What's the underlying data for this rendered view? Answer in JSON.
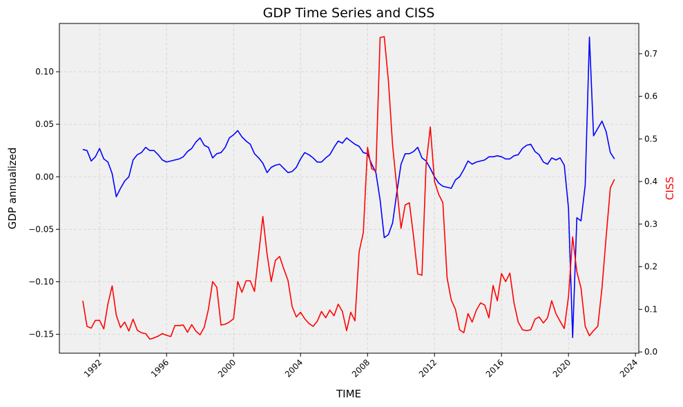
{
  "chart_data": {
    "type": "line",
    "title": "GDP Time Series and CISS",
    "xlabel": "TIME",
    "ylabel_left": "GDP annualized",
    "ylabel_right": "CISS",
    "xlim": [
      1989.6,
      2024.2
    ],
    "ylim_left": [
      -0.168,
      0.146
    ],
    "ylim_right": [
      -0.003,
      0.771
    ],
    "x_ticks": [
      1992,
      1996,
      2000,
      2004,
      2008,
      2012,
      2016,
      2020,
      2024
    ],
    "x_tick_labels": [
      "1992",
      "1996",
      "2000",
      "2004",
      "2008",
      "2012",
      "2016",
      "2020",
      "2024"
    ],
    "y_left_ticks": [
      -0.15,
      -0.1,
      -0.05,
      0.0,
      0.05,
      0.1
    ],
    "y_left_tick_labels": [
      "−0.15",
      "−0.10",
      "−0.05",
      "0.00",
      "0.05",
      "0.10"
    ],
    "y_right_ticks": [
      0.0,
      0.1,
      0.2,
      0.3,
      0.4,
      0.5,
      0.6,
      0.7
    ],
    "y_right_tick_labels": [
      "0.0",
      "0.1",
      "0.2",
      "0.3",
      "0.4",
      "0.5",
      "0.6",
      "0.7"
    ],
    "grid": true,
    "plot_background": "#f0f0f0",
    "right_axis_label_color": "#ff0000",
    "series": [
      {
        "axis": "left",
        "color": "#0000ff",
        "points": [
          [
            1991.0,
            0.026
          ],
          [
            1991.25,
            0.025
          ],
          [
            1991.5,
            0.015
          ],
          [
            1991.75,
            0.019
          ],
          [
            1992.0,
            0.027
          ],
          [
            1992.25,
            0.017
          ],
          [
            1992.5,
            0.014
          ],
          [
            1992.75,
            0.003
          ],
          [
            1993.0,
            -0.019
          ],
          [
            1993.25,
            -0.011
          ],
          [
            1993.5,
            -0.004
          ],
          [
            1993.75,
            0.0
          ],
          [
            1994.0,
            0.016
          ],
          [
            1994.25,
            0.021
          ],
          [
            1994.5,
            0.023
          ],
          [
            1994.75,
            0.028
          ],
          [
            1995.0,
            0.025
          ],
          [
            1995.25,
            0.025
          ],
          [
            1995.5,
            0.021
          ],
          [
            1995.75,
            0.016
          ],
          [
            1996.0,
            0.014
          ],
          [
            1996.25,
            0.015
          ],
          [
            1996.5,
            0.016
          ],
          [
            1996.75,
            0.017
          ],
          [
            1997.0,
            0.019
          ],
          [
            1997.25,
            0.024
          ],
          [
            1997.5,
            0.027
          ],
          [
            1997.75,
            0.033
          ],
          [
            1998.0,
            0.037
          ],
          [
            1998.25,
            0.03
          ],
          [
            1998.5,
            0.028
          ],
          [
            1998.75,
            0.018
          ],
          [
            1999.0,
            0.022
          ],
          [
            1999.25,
            0.023
          ],
          [
            1999.5,
            0.028
          ],
          [
            1999.75,
            0.037
          ],
          [
            2000.0,
            0.04
          ],
          [
            2000.25,
            0.044
          ],
          [
            2000.5,
            0.038
          ],
          [
            2000.75,
            0.034
          ],
          [
            2001.0,
            0.031
          ],
          [
            2001.25,
            0.022
          ],
          [
            2001.5,
            0.018
          ],
          [
            2001.75,
            0.013
          ],
          [
            2002.0,
            0.004
          ],
          [
            2002.25,
            0.009
          ],
          [
            2002.5,
            0.011
          ],
          [
            2002.75,
            0.012
          ],
          [
            2003.0,
            0.008
          ],
          [
            2003.25,
            0.004
          ],
          [
            2003.5,
            0.005
          ],
          [
            2003.75,
            0.009
          ],
          [
            2004.0,
            0.017
          ],
          [
            2004.25,
            0.023
          ],
          [
            2004.5,
            0.021
          ],
          [
            2004.75,
            0.018
          ],
          [
            2005.0,
            0.014
          ],
          [
            2005.25,
            0.014
          ],
          [
            2005.5,
            0.018
          ],
          [
            2005.75,
            0.021
          ],
          [
            2006.0,
            0.028
          ],
          [
            2006.25,
            0.034
          ],
          [
            2006.5,
            0.032
          ],
          [
            2006.75,
            0.037
          ],
          [
            2007.0,
            0.034
          ],
          [
            2007.25,
            0.031
          ],
          [
            2007.5,
            0.029
          ],
          [
            2007.75,
            0.023
          ],
          [
            2008.0,
            0.022
          ],
          [
            2008.25,
            0.012
          ],
          [
            2008.5,
            0.004
          ],
          [
            2008.75,
            -0.022
          ],
          [
            2009.0,
            -0.058
          ],
          [
            2009.25,
            -0.055
          ],
          [
            2009.5,
            -0.044
          ],
          [
            2009.75,
            -0.015
          ],
          [
            2010.0,
            0.012
          ],
          [
            2010.25,
            0.022
          ],
          [
            2010.5,
            0.022
          ],
          [
            2010.75,
            0.024
          ],
          [
            2011.0,
            0.028
          ],
          [
            2011.25,
            0.018
          ],
          [
            2011.5,
            0.015
          ],
          [
            2011.75,
            0.008
          ],
          [
            2012.0,
            0.0
          ],
          [
            2012.25,
            -0.006
          ],
          [
            2012.5,
            -0.009
          ],
          [
            2012.75,
            -0.01
          ],
          [
            2013.0,
            -0.011
          ],
          [
            2013.25,
            -0.003
          ],
          [
            2013.5,
            0.0
          ],
          [
            2013.75,
            0.007
          ],
          [
            2014.0,
            0.015
          ],
          [
            2014.25,
            0.012
          ],
          [
            2014.5,
            0.014
          ],
          [
            2014.75,
            0.015
          ],
          [
            2015.0,
            0.016
          ],
          [
            2015.25,
            0.019
          ],
          [
            2015.5,
            0.019
          ],
          [
            2015.75,
            0.02
          ],
          [
            2016.0,
            0.019
          ],
          [
            2016.25,
            0.017
          ],
          [
            2016.5,
            0.017
          ],
          [
            2016.75,
            0.02
          ],
          [
            2017.0,
            0.021
          ],
          [
            2017.25,
            0.027
          ],
          [
            2017.5,
            0.03
          ],
          [
            2017.75,
            0.031
          ],
          [
            2018.0,
            0.024
          ],
          [
            2018.25,
            0.021
          ],
          [
            2018.5,
            0.014
          ],
          [
            2018.75,
            0.012
          ],
          [
            2019.0,
            0.018
          ],
          [
            2019.25,
            0.016
          ],
          [
            2019.5,
            0.018
          ],
          [
            2019.75,
            0.011
          ],
          [
            2020.0,
            -0.03
          ],
          [
            2020.25,
            -0.153
          ],
          [
            2020.5,
            -0.039
          ],
          [
            2020.75,
            -0.042
          ],
          [
            2021.0,
            -0.008
          ],
          [
            2021.25,
            0.133
          ],
          [
            2021.5,
            0.039
          ],
          [
            2021.75,
            0.046
          ],
          [
            2022.0,
            0.053
          ],
          [
            2022.25,
            0.043
          ],
          [
            2022.5,
            0.023
          ],
          [
            2022.75,
            0.017
          ]
        ]
      },
      {
        "axis": "right",
        "color": "#ff0000",
        "points": [
          [
            1991.0,
            0.12
          ],
          [
            1991.25,
            0.06
          ],
          [
            1991.5,
            0.056
          ],
          [
            1991.75,
            0.074
          ],
          [
            1992.0,
            0.074
          ],
          [
            1992.25,
            0.054
          ],
          [
            1992.5,
            0.113
          ],
          [
            1992.75,
            0.155
          ],
          [
            1993.0,
            0.086
          ],
          [
            1993.25,
            0.057
          ],
          [
            1993.5,
            0.07
          ],
          [
            1993.75,
            0.049
          ],
          [
            1994.0,
            0.077
          ],
          [
            1994.25,
            0.051
          ],
          [
            1994.5,
            0.045
          ],
          [
            1994.75,
            0.043
          ],
          [
            1995.0,
            0.03
          ],
          [
            1995.25,
            0.033
          ],
          [
            1995.5,
            0.037
          ],
          [
            1995.75,
            0.043
          ],
          [
            1996.0,
            0.039
          ],
          [
            1996.25,
            0.036
          ],
          [
            1996.5,
            0.062
          ],
          [
            1996.75,
            0.062
          ],
          [
            1997.0,
            0.063
          ],
          [
            1997.25,
            0.046
          ],
          [
            1997.5,
            0.064
          ],
          [
            1997.75,
            0.049
          ],
          [
            1998.0,
            0.04
          ],
          [
            1998.25,
            0.058
          ],
          [
            1998.5,
            0.1
          ],
          [
            1998.75,
            0.165
          ],
          [
            1999.0,
            0.152
          ],
          [
            1999.25,
            0.063
          ],
          [
            1999.5,
            0.065
          ],
          [
            1999.75,
            0.07
          ],
          [
            2000.0,
            0.078
          ],
          [
            2000.25,
            0.165
          ],
          [
            2000.5,
            0.14
          ],
          [
            2000.75,
            0.167
          ],
          [
            2001.0,
            0.167
          ],
          [
            2001.25,
            0.142
          ],
          [
            2001.5,
            0.23
          ],
          [
            2001.75,
            0.318
          ],
          [
            2002.0,
            0.23
          ],
          [
            2002.25,
            0.165
          ],
          [
            2002.5,
            0.215
          ],
          [
            2002.75,
            0.224
          ],
          [
            2003.0,
            0.195
          ],
          [
            2003.25,
            0.168
          ],
          [
            2003.5,
            0.106
          ],
          [
            2003.75,
            0.082
          ],
          [
            2004.0,
            0.093
          ],
          [
            2004.25,
            0.078
          ],
          [
            2004.5,
            0.067
          ],
          [
            2004.75,
            0.06
          ],
          [
            2005.0,
            0.072
          ],
          [
            2005.25,
            0.095
          ],
          [
            2005.5,
            0.08
          ],
          [
            2005.75,
            0.098
          ],
          [
            2006.0,
            0.085
          ],
          [
            2006.25,
            0.112
          ],
          [
            2006.5,
            0.095
          ],
          [
            2006.75,
            0.05
          ],
          [
            2007.0,
            0.093
          ],
          [
            2007.25,
            0.073
          ],
          [
            2007.5,
            0.235
          ],
          [
            2007.75,
            0.28
          ],
          [
            2008.0,
            0.48
          ],
          [
            2008.25,
            0.43
          ],
          [
            2008.5,
            0.425
          ],
          [
            2008.75,
            0.738
          ],
          [
            2009.0,
            0.74
          ],
          [
            2009.25,
            0.635
          ],
          [
            2009.5,
            0.485
          ],
          [
            2009.75,
            0.385
          ],
          [
            2010.0,
            0.29
          ],
          [
            2010.25,
            0.345
          ],
          [
            2010.5,
            0.35
          ],
          [
            2010.75,
            0.27
          ],
          [
            2011.0,
            0.183
          ],
          [
            2011.25,
            0.18
          ],
          [
            2011.5,
            0.44
          ],
          [
            2011.75,
            0.528
          ],
          [
            2012.0,
            0.4
          ],
          [
            2012.25,
            0.37
          ],
          [
            2012.5,
            0.35
          ],
          [
            2012.75,
            0.174
          ],
          [
            2013.0,
            0.122
          ],
          [
            2013.25,
            0.1
          ],
          [
            2013.5,
            0.052
          ],
          [
            2013.75,
            0.045
          ],
          [
            2014.0,
            0.09
          ],
          [
            2014.25,
            0.07
          ],
          [
            2014.5,
            0.098
          ],
          [
            2014.75,
            0.115
          ],
          [
            2015.0,
            0.11
          ],
          [
            2015.25,
            0.08
          ],
          [
            2015.5,
            0.156
          ],
          [
            2015.75,
            0.12
          ],
          [
            2016.0,
            0.184
          ],
          [
            2016.25,
            0.165
          ],
          [
            2016.5,
            0.185
          ],
          [
            2016.75,
            0.115
          ],
          [
            2017.0,
            0.07
          ],
          [
            2017.25,
            0.052
          ],
          [
            2017.5,
            0.05
          ],
          [
            2017.75,
            0.052
          ],
          [
            2018.0,
            0.077
          ],
          [
            2018.25,
            0.082
          ],
          [
            2018.5,
            0.068
          ],
          [
            2018.75,
            0.08
          ],
          [
            2019.0,
            0.12
          ],
          [
            2019.25,
            0.09
          ],
          [
            2019.5,
            0.072
          ],
          [
            2019.75,
            0.055
          ],
          [
            2020.0,
            0.13
          ],
          [
            2020.25,
            0.27
          ],
          [
            2020.5,
            0.188
          ],
          [
            2020.75,
            0.15
          ],
          [
            2021.0,
            0.06
          ],
          [
            2021.25,
            0.038
          ],
          [
            2021.5,
            0.05
          ],
          [
            2021.75,
            0.06
          ],
          [
            2022.0,
            0.15
          ],
          [
            2022.25,
            0.27
          ],
          [
            2022.5,
            0.385
          ],
          [
            2022.75,
            0.405
          ]
        ]
      }
    ]
  }
}
